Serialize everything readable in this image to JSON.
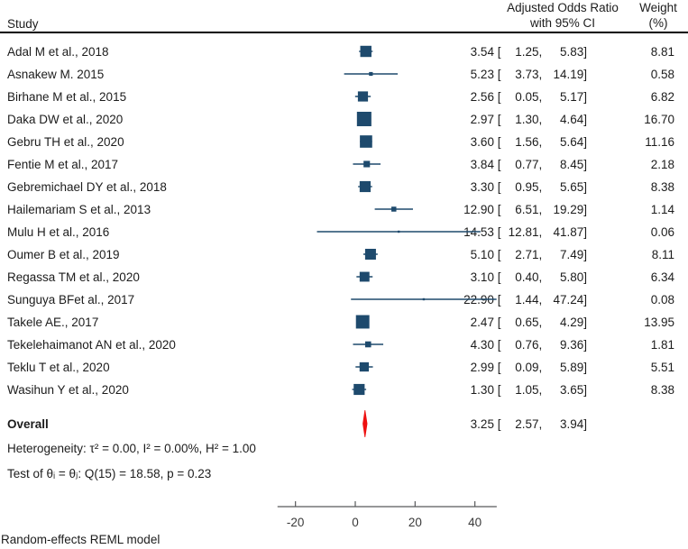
{
  "title_block": {
    "study_col": "Study",
    "effect_col": [
      "Adjusted Odds Ratio",
      "with 95% CI"
    ],
    "weight_col": [
      "Weight",
      "(%)"
    ]
  },
  "stats": {
    "heterogeneity": "Heterogeneity: τ² = 0.00, I² = 0.00%, H² = 1.00",
    "test_of_theta": "Test of θᵢ = θⱼ: Q(15) = 18.58, p = 0.23"
  },
  "footer": {
    "model_note": "Random-effects REML model"
  },
  "chart_data": {
    "type": "forest",
    "title": "",
    "effect_measure": "Adjusted Odds Ratio with 95% CI",
    "x_axis": {
      "ticks": [
        -20,
        0,
        20,
        40
      ],
      "drawn_range": [
        -26,
        47.3
      ],
      "grid": false
    },
    "marker_color": "#1e4a6d",
    "diamond_color": "#ee1111",
    "studies": [
      {
        "name": "Adal M et al., 2018",
        "or": 3.54,
        "ci_low": 1.25,
        "ci_high": 5.83,
        "weight": 8.81
      },
      {
        "name": "Asnakew M. 2015",
        "or": 5.23,
        "ci_low": 3.73,
        "ci_high": 14.19,
        "weight": 0.58
      },
      {
        "name": "Birhane M et al., 2015",
        "or": 2.56,
        "ci_low": 0.05,
        "ci_high": 5.17,
        "weight": 6.82
      },
      {
        "name": "Daka DW et al., 2020",
        "or": 2.97,
        "ci_low": 1.3,
        "ci_high": 4.64,
        "weight": 16.7
      },
      {
        "name": "Gebru TH et al., 2020",
        "or": 3.6,
        "ci_low": 1.56,
        "ci_high": 5.64,
        "weight": 11.16
      },
      {
        "name": "Fentie M et al., 2017",
        "or": 3.84,
        "ci_low": 0.77,
        "ci_high": 8.45,
        "weight": 2.18
      },
      {
        "name": "Gebremichael DY et al., 2018",
        "or": 3.3,
        "ci_low": 0.95,
        "ci_high": 5.65,
        "weight": 8.38
      },
      {
        "name": "Hailemariam S et al., 2013",
        "or": 12.9,
        "ci_low": 6.51,
        "ci_high": 19.29,
        "weight": 1.14
      },
      {
        "name": "Mulu H et al., 2016",
        "or": 14.53,
        "ci_low": 12.81,
        "ci_high": 41.87,
        "weight": 0.06
      },
      {
        "name": "Oumer B et al., 2019",
        "or": 5.1,
        "ci_low": 2.71,
        "ci_high": 7.49,
        "weight": 8.11
      },
      {
        "name": "Regassa TM et al., 2020",
        "or": 3.1,
        "ci_low": 0.4,
        "ci_high": 5.8,
        "weight": 6.34
      },
      {
        "name": "Sunguya BFet al., 2017",
        "or": 22.9,
        "ci_low": 1.44,
        "ci_high": 47.24,
        "weight": 0.08
      },
      {
        "name": "Takele AE., 2017",
        "or": 2.47,
        "ci_low": 0.65,
        "ci_high": 4.29,
        "weight": 13.95
      },
      {
        "name": "Tekelehaimanot AN et al., 2020",
        "or": 4.3,
        "ci_low": 0.76,
        "ci_high": 9.36,
        "weight": 1.81
      },
      {
        "name": "Teklu T et al., 2020",
        "or": 2.99,
        "ci_low": 0.09,
        "ci_high": 5.89,
        "weight": 5.51
      },
      {
        "name": "Wasihun Y et al., 2020",
        "or": 1.3,
        "ci_low": 1.05,
        "ci_high": 3.65,
        "weight": 8.38
      }
    ],
    "overall": {
      "label": "Overall",
      "or": 3.25,
      "ci_low": 2.57,
      "ci_high": 3.94
    }
  }
}
